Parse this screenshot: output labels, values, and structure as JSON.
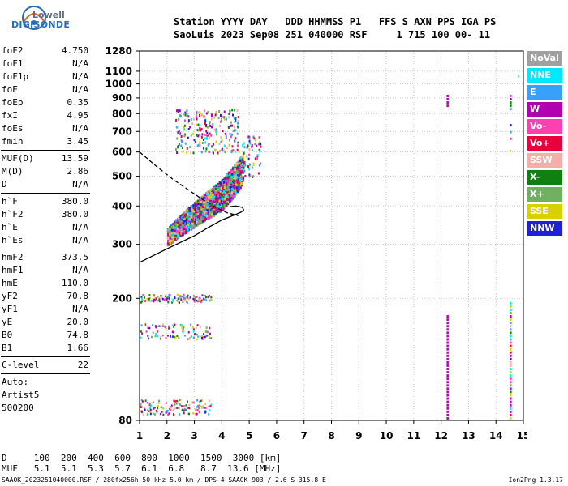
{
  "logo": {
    "line1": "Lowell",
    "line2": "DIGISONDE"
  },
  "header": {
    "line1": "Station YYYY DAY   DDD HHMMSS P1   FFS S AXN PPS IGA PS",
    "line2": "SaoLuis 2023 Sep08 251 040000 RSF     1 715 100 00- 11"
  },
  "params": [
    {
      "group": 1,
      "items": [
        {
          "label": "foF2",
          "value": "4.750"
        },
        {
          "label": "foF1",
          "value": "N/A"
        },
        {
          "label": "foF1p",
          "value": "N/A"
        },
        {
          "label": "foE",
          "value": "N/A"
        },
        {
          "label": "foEp",
          "value": "0.35"
        },
        {
          "label": "fxI",
          "value": "4.95"
        },
        {
          "label": "foEs",
          "value": "N/A"
        },
        {
          "label": "fmin",
          "value": "3.45"
        }
      ]
    },
    {
      "group": 2,
      "items": [
        {
          "label": "MUF(D)",
          "value": "13.59"
        },
        {
          "label": "M(D)",
          "value": "2.86"
        },
        {
          "label": "D",
          "value": "N/A"
        }
      ]
    },
    {
      "group": 3,
      "items": [
        {
          "label": "h`F",
          "value": "380.0"
        },
        {
          "label": "h`F2",
          "value": "380.0"
        },
        {
          "label": "h`E",
          "value": "N/A"
        },
        {
          "label": "h`Es",
          "value": "N/A"
        }
      ]
    },
    {
      "group": 4,
      "items": [
        {
          "label": "hmF2",
          "value": "373.5"
        },
        {
          "label": "hmF1",
          "value": "N/A"
        },
        {
          "label": "hmE",
          "value": "110.0"
        },
        {
          "label": "yF2",
          "value": "70.8"
        },
        {
          "label": "yF1",
          "value": "N/A"
        },
        {
          "label": "yE",
          "value": "20.0"
        },
        {
          "label": "B0",
          "value": "74.8"
        },
        {
          "label": "B1",
          "value": "1.66"
        }
      ]
    },
    {
      "group": 5,
      "items": [
        {
          "label": "C-level",
          "value": "22"
        }
      ]
    }
  ],
  "auto": {
    "line1": "Auto:",
    "line2": "Artist5",
    "line3": "500200"
  },
  "legend": [
    {
      "label": "NoVal",
      "color": "#a0a0a0"
    },
    {
      "label": "NNE",
      "color": "#00e8ff"
    },
    {
      "label": "E",
      "color": "#3aa0ff"
    },
    {
      "label": "W",
      "color": "#b000b0"
    },
    {
      "label": "Vo-",
      "color": "#ff40b0"
    },
    {
      "label": "Vo+",
      "color": "#e8003c"
    },
    {
      "label": "SSW",
      "color": "#f4b0a8"
    },
    {
      "label": "X-",
      "color": "#108010"
    },
    {
      "label": "X+",
      "color": "#70b060"
    },
    {
      "label": "SSE",
      "color": "#d8d000"
    },
    {
      "label": "NNW",
      "color": "#2020d8"
    }
  ],
  "freq_table": {
    "line1": "D     100  200  400  600  800  1000  1500  3000 [km]",
    "line2": "MUF   5.1  5.1  5.3  5.7  6.1  6.8   8.7  13.6 [MHz]"
  },
  "footer": {
    "left": "SAAOK_2023251040000.RSF / 280fx256h 50 kHz 5.0 km / DPS-4 SAAOK 903 / 2.6 S 315.8 E",
    "right": "Ion2Png 1.3.17"
  },
  "chart_data": {
    "type": "scatter",
    "title": "",
    "xlabel": "",
    "ylabel": "",
    "xlim": [
      1,
      15
    ],
    "ylim": [
      80,
      1280
    ],
    "x_ticks": [
      1,
      2,
      3,
      4,
      5,
      6,
      7,
      8,
      9,
      10,
      11,
      12,
      13,
      14,
      15
    ],
    "y_ticks": [
      80,
      200,
      300,
      400,
      500,
      600,
      700,
      800,
      900,
      1000,
      1100,
      1280
    ],
    "y_scale": "log",
    "grid": true,
    "traces": [
      {
        "name": "",
        "style": "solid",
        "x": [
          1.0,
          2.0,
          3.0,
          3.5,
          4.0,
          4.5,
          4.7,
          4.8,
          4.75,
          4.5,
          4.3
        ],
        "y": [
          262,
          290,
          320,
          340,
          360,
          375,
          382,
          388,
          396,
          400,
          398
        ]
      },
      {
        "name": "",
        "style": "dashed",
        "x": [
          1.0,
          1.6,
          2.2,
          2.8,
          3.3,
          3.8,
          4.2,
          4.6
        ],
        "y": [
          600,
          540,
          490,
          450,
          420,
          395,
          380,
          372
        ]
      }
    ],
    "echo_regions": [
      {
        "description": "F-layer echo cluster",
        "freq_range": [
          2.0,
          4.8
        ],
        "height_range": [
          300,
          620
        ]
      },
      {
        "description": "scattered echoes",
        "freq_range": [
          2.3,
          4.6
        ],
        "height_range": [
          620,
          850
        ]
      },
      {
        "description": "low-height echoes",
        "freq_range": [
          1.0,
          3.6
        ],
        "height_range": [
          80,
          210
        ]
      },
      {
        "description": "vertical echo strip",
        "freq_range": [
          12.2,
          12.25
        ],
        "height_range": [
          80,
          910
        ]
      },
      {
        "description": "vertical echo strip",
        "freq_range": [
          14.5,
          14.55
        ],
        "height_range": [
          80,
          940
        ]
      }
    ]
  }
}
